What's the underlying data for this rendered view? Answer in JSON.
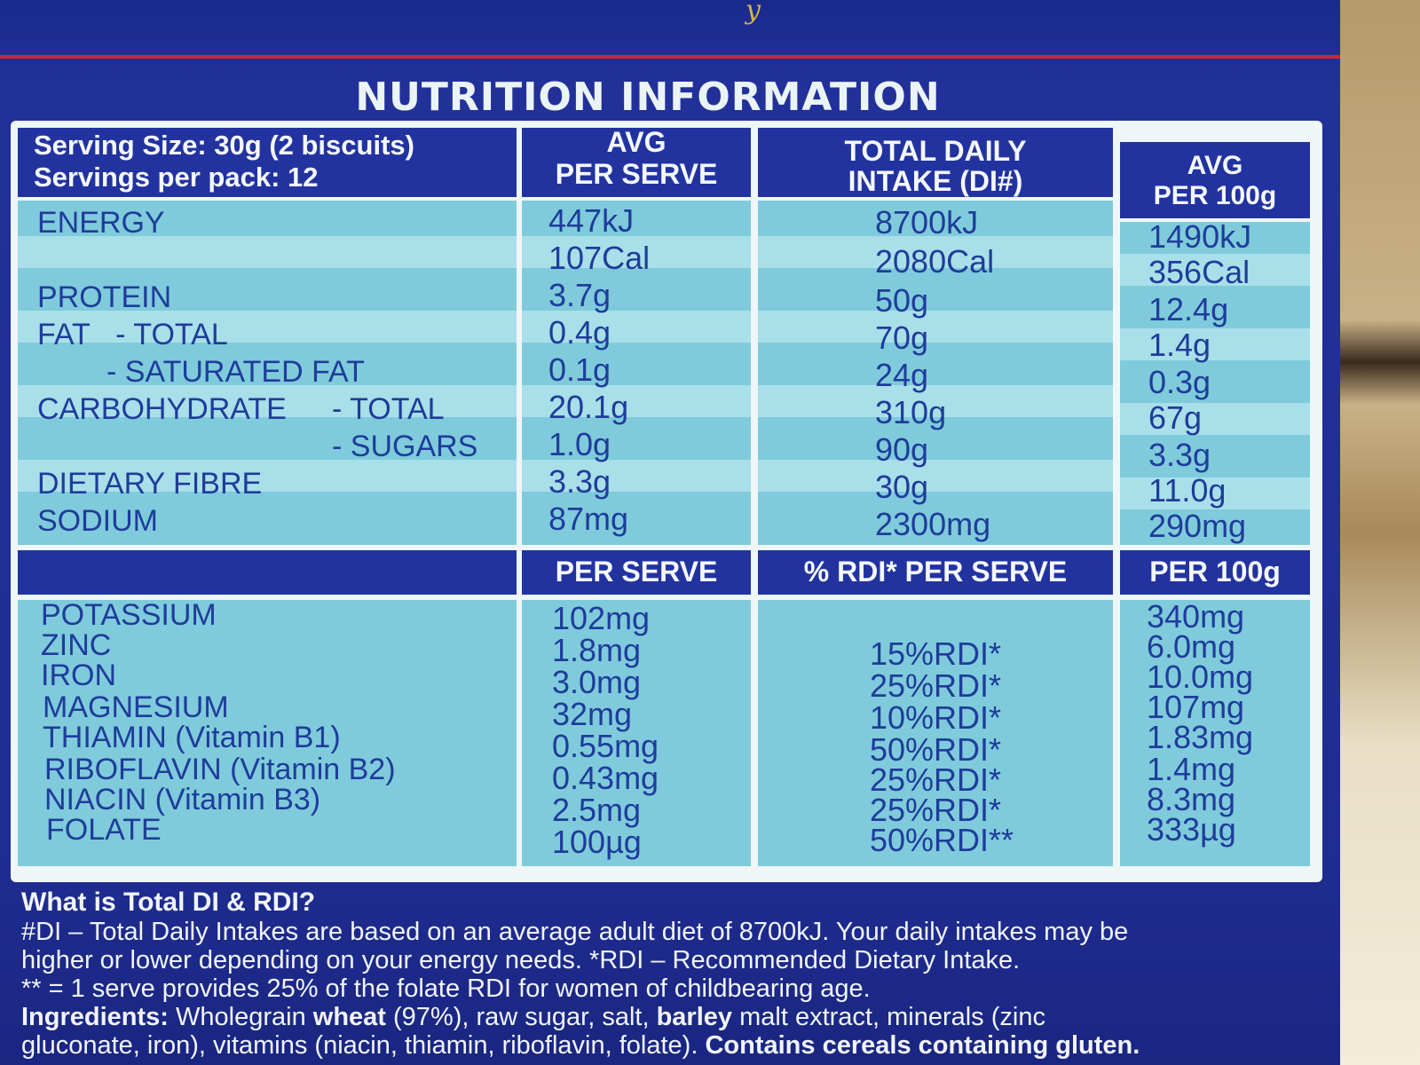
{
  "brand_fragment": "y",
  "title": "NUTRITION INFORMATION",
  "serving": {
    "size": "Serving Size: 30g (2 biscuits)",
    "per_pack": "Servings per pack: 12"
  },
  "columns_top": [
    "AVG",
    "PER SERVE",
    "TOTAL DAILY",
    "INTAKE (DI#)",
    "AVG",
    "PER 100g"
  ],
  "nutrients": [
    {
      "name": "ENERGY",
      "serve": "447kJ",
      "di": "8700kJ",
      "per100": "1490kJ"
    },
    {
      "name": "",
      "serve": "107Cal",
      "di": "2080Cal",
      "per100": "356Cal"
    },
    {
      "name": "PROTEIN",
      "serve": "3.7g",
      "di": "50g",
      "per100": "12.4g"
    },
    {
      "name": "FAT   - TOTAL",
      "serve": "0.4g",
      "di": "70g",
      "per100": "1.4g"
    },
    {
      "name": "- SATURATED FAT",
      "serve": "0.1g",
      "di": "24g",
      "per100": "0.3g"
    },
    {
      "name": "CARBOHYDRATE",
      "sub": "- TOTAL",
      "serve": "20.1g",
      "di": "310g",
      "per100": "67g"
    },
    {
      "name": "",
      "sub": "- SUGARS",
      "serve": "1.0g",
      "di": "90g",
      "per100": "3.3g"
    },
    {
      "name": "DIETARY FIBRE",
      "serve": "3.3g",
      "di": "30g",
      "per100": "11.0g"
    },
    {
      "name": "SODIUM",
      "serve": "87mg",
      "di": "2300mg",
      "per100": "290mg"
    }
  ],
  "columns_bottom": [
    "PER SERVE",
    "% RDI* PER SERVE",
    "PER 100g"
  ],
  "minerals": [
    {
      "name": "POTASSIUM",
      "serve": "102mg",
      "rdi": "",
      "per100": "340mg"
    },
    {
      "name": "ZINC",
      "serve": "1.8mg",
      "rdi": "15%RDI*",
      "per100": "6.0mg"
    },
    {
      "name": "IRON",
      "serve": "3.0mg",
      "rdi": "25%RDI*",
      "per100": "10.0mg"
    },
    {
      "name": "MAGNESIUM",
      "serve": "32mg",
      "rdi": "10%RDI*",
      "per100": "107mg"
    },
    {
      "name": "THIAMIN (Vitamin B1)",
      "serve": "0.55mg",
      "rdi": "50%RDI*",
      "per100": "1.83mg"
    },
    {
      "name": "RIBOFLAVIN (Vitamin B2)",
      "serve": "0.43mg",
      "rdi": "25%RDI*",
      "per100": "1.4mg"
    },
    {
      "name": "NIACIN (Vitamin B3)",
      "serve": "2.5mg",
      "rdi": "25%RDI*",
      "per100": "8.3mg"
    },
    {
      "name": "FOLATE",
      "serve": "100µg",
      "rdi": "50%RDI**",
      "per100": "333µg"
    }
  ],
  "footer": {
    "heading": "What is Total DI & RDI?",
    "line1": "#DI – Total Daily Intakes are based on an average adult diet of 8700kJ. Your daily intakes may be",
    "line2": "higher or lower depending on your energy needs. *RDI – Recommended Dietary Intake.",
    "line3": "** = 1 serve provides 25% of the folate RDI for women of childbearing age.",
    "ingredients_label": "Ingredients:",
    "ingredients_a": " Wholegrain ",
    "ingredients_b": "wheat",
    "ingredients_c": " (97%), raw sugar, salt, ",
    "ingredients_d": "barley",
    "ingredients_e": " malt extract, minerals (zinc",
    "line5a": "gluconate, iron), vitamins (niacin, thiamin, riboflavin, folate). ",
    "line5b": "Contains cereals containing gluten."
  }
}
